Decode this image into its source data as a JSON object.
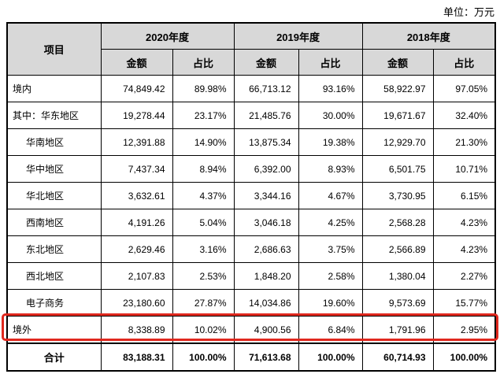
{
  "unit_label": "单位：万元",
  "colors": {
    "highlight_red": "#e0281e",
    "header_bg": "#d8d8d8",
    "border": "#000000"
  },
  "table": {
    "item_header": "项目",
    "year_groups": [
      {
        "label": "2020年度"
      },
      {
        "label": "2019年度"
      },
      {
        "label": "2018年度"
      }
    ],
    "sub_headers": {
      "amount": "金额",
      "ratio": "占比"
    },
    "rows": [
      {
        "label": "境内",
        "cells": [
          "74,849.42",
          "89.98%",
          "66,713.12",
          "93.16%",
          "58,922.97",
          "97.05%"
        ]
      },
      {
        "label": "其中：华东地区",
        "cells": [
          "19,278.44",
          "23.17%",
          "21,485.76",
          "30.00%",
          "19,671.67",
          "32.40%"
        ]
      },
      {
        "label": "华南地区",
        "cells": [
          "12,391.88",
          "14.90%",
          "13,875.34",
          "19.38%",
          "12,929.70",
          "21.30%"
        ]
      },
      {
        "label": "华中地区",
        "cells": [
          "7,437.34",
          "8.94%",
          "6,392.00",
          "8.93%",
          "6,501.75",
          "10.71%"
        ]
      },
      {
        "label": "华北地区",
        "cells": [
          "3,632.61",
          "4.37%",
          "3,344.16",
          "4.67%",
          "3,730.95",
          "6.15%"
        ]
      },
      {
        "label": "西南地区",
        "cells": [
          "4,191.26",
          "5.04%",
          "3,046.18",
          "4.25%",
          "2,568.28",
          "4.23%"
        ]
      },
      {
        "label": "东北地区",
        "cells": [
          "2,629.46",
          "3.16%",
          "2,686.63",
          "3.75%",
          "2,566.89",
          "4.23%"
        ]
      },
      {
        "label": "西北地区",
        "cells": [
          "2,107.83",
          "2.53%",
          "1,848.20",
          "2.58%",
          "1,380.04",
          "2.27%"
        ]
      },
      {
        "label": "电子商务",
        "cells": [
          "23,180.60",
          "27.87%",
          "14,034.86",
          "19.60%",
          "9,573.69",
          "15.77%"
        ]
      },
      {
        "label": "境外",
        "cells": [
          "8,338.89",
          "10.02%",
          "4,900.56",
          "6.84%",
          "1,791.96",
          "2.95%"
        ]
      },
      {
        "label": "合计",
        "cells": [
          "83,188.31",
          "100.00%",
          "71,613.68",
          "100.00%",
          "60,714.93",
          "100.00%"
        ]
      }
    ]
  }
}
